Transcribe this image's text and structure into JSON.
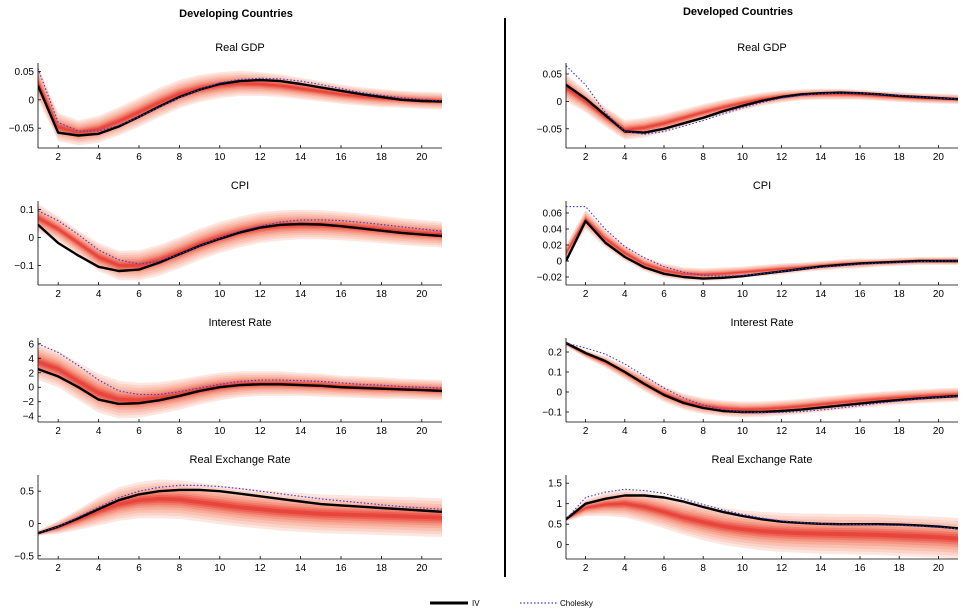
{
  "panel_titles": [
    "Developing Countries",
    "Developed Countries"
  ],
  "legend": {
    "iv": "IV",
    "cholesky": "Cholesky"
  },
  "colors": {
    "iv": "#000000",
    "cholesky": "#3b3bd6",
    "band_outer": "#fde6df",
    "band_mid": "#f7a38e",
    "band_inner": "#e8453c",
    "axes": "#000000",
    "divider": "#000000"
  },
  "chart_data": [
    {
      "type": "area",
      "panel": "Developing Countries",
      "title": "Real GDP",
      "xlim": [
        1,
        21
      ],
      "x_ticks": [
        2,
        4,
        6,
        8,
        10,
        12,
        14,
        16,
        18,
        20
      ],
      "ylim": [
        -0.085,
        0.065
      ],
      "y_ticks": [
        -0.05,
        0,
        0.05
      ],
      "y_tick_labels": [
        "−0.05",
        "0",
        "0.05"
      ],
      "x": [
        1,
        2,
        3,
        4,
        5,
        6,
        7,
        8,
        9,
        10,
        11,
        12,
        13,
        14,
        15,
        16,
        17,
        18,
        19,
        20,
        21
      ],
      "series": [
        {
          "name": "IV",
          "values": [
            0.025,
            -0.058,
            -0.063,
            -0.06,
            -0.047,
            -0.03,
            -0.012,
            0.005,
            0.018,
            0.028,
            0.033,
            0.035,
            0.033,
            0.028,
            0.022,
            0.016,
            0.01,
            0.005,
            0.0,
            -0.002,
            -0.003
          ]
        },
        {
          "name": "Cholesky",
          "values": [
            0.055,
            -0.04,
            -0.055,
            -0.055,
            -0.045,
            -0.03,
            -0.013,
            0.004,
            0.018,
            0.03,
            0.036,
            0.038,
            0.037,
            0.033,
            0.027,
            0.02,
            0.013,
            0.008,
            0.004,
            0.001,
            -0.002
          ]
        }
      ],
      "band_median": [
        0.03,
        -0.048,
        -0.058,
        -0.052,
        -0.038,
        -0.022,
        -0.005,
        0.01,
        0.02,
        0.026,
        0.029,
        0.028,
        0.025,
        0.02,
        0.015,
        0.01,
        0.006,
        0.003,
        0.001,
        -0.001,
        -0.002
      ],
      "band_halfwidth": [
        0.03,
        0.025,
        0.022,
        0.024,
        0.025,
        0.026,
        0.026,
        0.025,
        0.024,
        0.023,
        0.022,
        0.021,
        0.02,
        0.019,
        0.018,
        0.017,
        0.016,
        0.016,
        0.015,
        0.015,
        0.015
      ]
    },
    {
      "type": "area",
      "panel": "Developed Countries",
      "title": "Real GDP",
      "xlim": [
        1,
        21
      ],
      "x_ticks": [
        2,
        4,
        6,
        8,
        10,
        12,
        14,
        16,
        18,
        20
      ],
      "ylim": [
        -0.085,
        0.07
      ],
      "y_ticks": [
        -0.05,
        0,
        0.05
      ],
      "y_tick_labels": [
        "−0.05",
        "0",
        "0.05"
      ],
      "x": [
        1,
        2,
        3,
        4,
        5,
        6,
        7,
        8,
        9,
        10,
        11,
        12,
        13,
        14,
        15,
        16,
        17,
        18,
        19,
        20,
        21
      ],
      "series": [
        {
          "name": "IV",
          "values": [
            0.03,
            0.005,
            -0.025,
            -0.055,
            -0.057,
            -0.05,
            -0.04,
            -0.03,
            -0.018,
            -0.008,
            0.001,
            0.008,
            0.013,
            0.015,
            0.016,
            0.015,
            0.013,
            0.01,
            0.008,
            0.006,
            0.004
          ]
        },
        {
          "name": "Cholesky",
          "values": [
            0.065,
            0.03,
            -0.02,
            -0.055,
            -0.06,
            -0.055,
            -0.045,
            -0.035,
            -0.023,
            -0.012,
            -0.002,
            0.006,
            0.011,
            0.014,
            0.015,
            0.015,
            0.013,
            0.011,
            0.008,
            0.006,
            0.004
          ]
        }
      ],
      "band_median": [
        0.025,
        0.0,
        -0.028,
        -0.052,
        -0.048,
        -0.04,
        -0.03,
        -0.02,
        -0.011,
        -0.003,
        0.004,
        0.009,
        0.012,
        0.013,
        0.013,
        0.012,
        0.01,
        0.008,
        0.006,
        0.005,
        0.004
      ],
      "band_halfwidth": [
        0.025,
        0.02,
        0.018,
        0.018,
        0.018,
        0.017,
        0.016,
        0.015,
        0.014,
        0.013,
        0.012,
        0.011,
        0.01,
        0.01,
        0.01,
        0.009,
        0.009,
        0.009,
        0.009,
        0.009,
        0.009
      ]
    },
    {
      "type": "area",
      "panel": "Developing Countries",
      "title": "CPI",
      "xlim": [
        1,
        21
      ],
      "x_ticks": [
        2,
        4,
        6,
        8,
        10,
        12,
        14,
        16,
        18,
        20
      ],
      "ylim": [
        -0.17,
        0.13
      ],
      "y_ticks": [
        -0.1,
        0,
        0.1
      ],
      "y_tick_labels": [
        "−0.1",
        "0",
        "0.1"
      ],
      "x": [
        1,
        2,
        3,
        4,
        5,
        6,
        7,
        8,
        9,
        10,
        11,
        12,
        13,
        14,
        15,
        16,
        17,
        18,
        19,
        20,
        21
      ],
      "series": [
        {
          "name": "IV",
          "values": [
            0.045,
            -0.02,
            -0.065,
            -0.105,
            -0.12,
            -0.115,
            -0.09,
            -0.06,
            -0.03,
            -0.005,
            0.018,
            0.035,
            0.045,
            0.048,
            0.046,
            0.04,
            0.032,
            0.024,
            0.016,
            0.01,
            0.005
          ]
        },
        {
          "name": "Cholesky",
          "values": [
            0.095,
            0.06,
            0.01,
            -0.045,
            -0.08,
            -0.095,
            -0.085,
            -0.06,
            -0.03,
            -0.002,
            0.022,
            0.04,
            0.055,
            0.062,
            0.063,
            0.06,
            0.054,
            0.046,
            0.038,
            0.03,
            0.022
          ]
        }
      ],
      "band_median": [
        0.07,
        0.03,
        -0.02,
        -0.07,
        -0.1,
        -0.1,
        -0.082,
        -0.055,
        -0.025,
        0.0,
        0.02,
        0.035,
        0.043,
        0.046,
        0.045,
        0.041,
        0.035,
        0.028,
        0.021,
        0.015,
        0.01
      ],
      "band_halfwidth": [
        0.05,
        0.045,
        0.045,
        0.05,
        0.052,
        0.054,
        0.055,
        0.056,
        0.056,
        0.056,
        0.055,
        0.055,
        0.054,
        0.053,
        0.052,
        0.051,
        0.05,
        0.049,
        0.048,
        0.047,
        0.046
      ]
    },
    {
      "type": "area",
      "panel": "Developed Countries",
      "title": "CPI",
      "xlim": [
        1,
        21
      ],
      "x_ticks": [
        2,
        4,
        6,
        8,
        10,
        12,
        14,
        16,
        18,
        20
      ],
      "ylim": [
        -0.03,
        0.075
      ],
      "y_ticks": [
        -0.02,
        0,
        0.02,
        0.04,
        0.06
      ],
      "y_tick_labels": [
        "−0.02",
        "0",
        "0.02",
        "0.04",
        "0.06"
      ],
      "x": [
        1,
        2,
        3,
        4,
        5,
        6,
        7,
        8,
        9,
        10,
        11,
        12,
        13,
        14,
        15,
        16,
        17,
        18,
        19,
        20,
        21
      ],
      "series": [
        {
          "name": "IV",
          "values": [
            0.0,
            0.05,
            0.023,
            0.005,
            -0.008,
            -0.016,
            -0.02,
            -0.022,
            -0.021,
            -0.019,
            -0.016,
            -0.013,
            -0.01,
            -0.007,
            -0.005,
            -0.003,
            -0.002,
            -0.001,
            0.0,
            0.0,
            0.0
          ]
        },
        {
          "name": "Cholesky",
          "values": [
            0.068,
            0.068,
            0.04,
            0.018,
            0.004,
            -0.007,
            -0.014,
            -0.018,
            -0.019,
            -0.018,
            -0.016,
            -0.013,
            -0.01,
            -0.008,
            -0.006,
            -0.004,
            -0.003,
            -0.002,
            -0.001,
            0.0,
            0.0
          ]
        }
      ],
      "band_median": [
        0.01,
        0.052,
        0.028,
        0.01,
        -0.004,
        -0.012,
        -0.016,
        -0.017,
        -0.016,
        -0.014,
        -0.012,
        -0.01,
        -0.008,
        -0.006,
        -0.004,
        -0.003,
        -0.002,
        -0.001,
        0.0,
        0.0,
        0.0
      ],
      "band_halfwidth": [
        0.01,
        0.012,
        0.011,
        0.01,
        0.009,
        0.009,
        0.008,
        0.008,
        0.008,
        0.007,
        0.007,
        0.007,
        0.006,
        0.006,
        0.006,
        0.006,
        0.005,
        0.005,
        0.005,
        0.005,
        0.005
      ]
    },
    {
      "type": "area",
      "panel": "Developing Countries",
      "title": "Interest Rate",
      "xlim": [
        1,
        21
      ],
      "x_ticks": [
        2,
        4,
        6,
        8,
        10,
        12,
        14,
        16,
        18,
        20
      ],
      "ylim": [
        -4.8,
        6.8
      ],
      "y_ticks": [
        -4,
        -2,
        0,
        2,
        4,
        6
      ],
      "y_tick_labels": [
        "−4",
        "−2",
        "0",
        "2",
        "4",
        "6"
      ],
      "x": [
        1,
        2,
        3,
        4,
        5,
        6,
        7,
        8,
        9,
        10,
        11,
        12,
        13,
        14,
        15,
        16,
        17,
        18,
        19,
        20,
        21
      ],
      "series": [
        {
          "name": "IV",
          "values": [
            2.5,
            1.5,
            0.0,
            -1.7,
            -2.3,
            -2.2,
            -1.8,
            -1.2,
            -0.5,
            0.0,
            0.3,
            0.4,
            0.4,
            0.3,
            0.2,
            0.0,
            -0.1,
            -0.2,
            -0.3,
            -0.4,
            -0.5
          ]
        },
        {
          "name": "Cholesky",
          "values": [
            6.0,
            4.8,
            3.0,
            1.0,
            -0.5,
            -1.0,
            -1.0,
            -0.6,
            -0.1,
            0.4,
            0.8,
            1.0,
            1.0,
            0.9,
            0.8,
            0.6,
            0.4,
            0.3,
            0.1,
            0.0,
            -0.1
          ]
        }
      ],
      "band_median": [
        3.5,
        2.5,
        0.8,
        -0.8,
        -1.7,
        -1.8,
        -1.5,
        -1.0,
        -0.4,
        0.1,
        0.4,
        0.5,
        0.5,
        0.4,
        0.3,
        0.1,
        0.0,
        -0.1,
        -0.2,
        -0.3,
        -0.4
      ],
      "band_halfwidth": [
        2.5,
        2.5,
        2.6,
        2.7,
        2.6,
        2.4,
        2.2,
        2.1,
        2.0,
        1.9,
        1.8,
        1.7,
        1.7,
        1.6,
        1.6,
        1.5,
        1.5,
        1.5,
        1.4,
        1.4,
        1.4
      ]
    },
    {
      "type": "area",
      "panel": "Developed Countries",
      "title": "Interest Rate",
      "xlim": [
        1,
        21
      ],
      "x_ticks": [
        2,
        4,
        6,
        8,
        10,
        12,
        14,
        16,
        18,
        20
      ],
      "ylim": [
        -0.15,
        0.27
      ],
      "y_ticks": [
        -0.1,
        0,
        0.1,
        0.2
      ],
      "y_tick_labels": [
        "−0.1",
        "0",
        "0.1",
        "0.2"
      ],
      "x": [
        1,
        2,
        3,
        4,
        5,
        6,
        7,
        8,
        9,
        10,
        11,
        12,
        13,
        14,
        15,
        16,
        17,
        18,
        19,
        20,
        21
      ],
      "series": [
        {
          "name": "IV",
          "values": [
            0.245,
            0.195,
            0.155,
            0.1,
            0.04,
            -0.015,
            -0.055,
            -0.08,
            -0.095,
            -0.1,
            -0.1,
            -0.095,
            -0.088,
            -0.078,
            -0.068,
            -0.058,
            -0.048,
            -0.04,
            -0.032,
            -0.026,
            -0.02
          ]
        },
        {
          "name": "Cholesky",
          "values": [
            0.245,
            0.22,
            0.19,
            0.14,
            0.08,
            0.02,
            -0.03,
            -0.065,
            -0.088,
            -0.1,
            -0.103,
            -0.102,
            -0.098,
            -0.09,
            -0.08,
            -0.068,
            -0.056,
            -0.045,
            -0.035,
            -0.027,
            -0.02
          ]
        }
      ],
      "band_median": [
        0.24,
        0.19,
        0.15,
        0.098,
        0.042,
        -0.01,
        -0.048,
        -0.07,
        -0.082,
        -0.088,
        -0.086,
        -0.08,
        -0.072,
        -0.062,
        -0.052,
        -0.043,
        -0.035,
        -0.028,
        -0.022,
        -0.017,
        -0.013
      ],
      "band_halfwidth": [
        0.01,
        0.02,
        0.028,
        0.034,
        0.038,
        0.04,
        0.04,
        0.04,
        0.04,
        0.04,
        0.039,
        0.039,
        0.038,
        0.038,
        0.037,
        0.037,
        0.036,
        0.036,
        0.035,
        0.035,
        0.035
      ]
    },
    {
      "type": "area",
      "panel": "Developing Countries",
      "title": "Real Exchange Rate",
      "xlim": [
        1,
        21
      ],
      "x_ticks": [
        2,
        4,
        6,
        8,
        10,
        12,
        14,
        16,
        18,
        20
      ],
      "ylim": [
        -0.55,
        0.75
      ],
      "y_ticks": [
        -0.5,
        0,
        0.5
      ],
      "y_tick_labels": [
        "−0.5",
        "0",
        "0.5"
      ],
      "x": [
        1,
        2,
        3,
        4,
        5,
        6,
        7,
        8,
        9,
        10,
        11,
        12,
        13,
        14,
        15,
        16,
        17,
        18,
        19,
        20,
        21
      ],
      "series": [
        {
          "name": "IV",
          "values": [
            -0.15,
            -0.05,
            0.08,
            0.22,
            0.36,
            0.45,
            0.5,
            0.52,
            0.52,
            0.5,
            0.46,
            0.42,
            0.38,
            0.34,
            0.3,
            0.28,
            0.26,
            0.24,
            0.22,
            0.2,
            0.18
          ]
        },
        {
          "name": "Cholesky",
          "values": [
            -0.15,
            -0.05,
            0.1,
            0.25,
            0.4,
            0.5,
            0.56,
            0.59,
            0.59,
            0.57,
            0.54,
            0.5,
            0.46,
            0.42,
            0.38,
            0.35,
            0.32,
            0.29,
            0.26,
            0.24,
            0.22
          ]
        }
      ],
      "band_median": [
        -0.15,
        -0.06,
        0.06,
        0.19,
        0.3,
        0.36,
        0.38,
        0.37,
        0.33,
        0.29,
        0.25,
        0.22,
        0.19,
        0.17,
        0.15,
        0.14,
        0.13,
        0.12,
        0.11,
        0.1,
        0.09
      ],
      "band_halfwidth": [
        0.04,
        0.1,
        0.16,
        0.22,
        0.26,
        0.28,
        0.3,
        0.3,
        0.3,
        0.3,
        0.3,
        0.3,
        0.3,
        0.3,
        0.3,
        0.3,
        0.3,
        0.3,
        0.3,
        0.3,
        0.3
      ]
    },
    {
      "type": "area",
      "panel": "Developed Countries",
      "title": "Real Exchange Rate",
      "xlim": [
        1,
        21
      ],
      "x_ticks": [
        2,
        4,
        6,
        8,
        10,
        12,
        14,
        16,
        18,
        20
      ],
      "ylim": [
        -0.35,
        1.7
      ],
      "y_ticks": [
        0,
        0.5,
        1,
        1.5
      ],
      "y_tick_labels": [
        "0",
        "0.5",
        "1",
        "1.5"
      ],
      "x": [
        1,
        2,
        3,
        4,
        5,
        6,
        7,
        8,
        9,
        10,
        11,
        12,
        13,
        14,
        15,
        16,
        17,
        18,
        19,
        20,
        21
      ],
      "series": [
        {
          "name": "IV",
          "values": [
            0.62,
            1.0,
            1.12,
            1.2,
            1.2,
            1.15,
            1.05,
            0.92,
            0.8,
            0.7,
            0.62,
            0.56,
            0.53,
            0.51,
            0.5,
            0.5,
            0.5,
            0.49,
            0.47,
            0.44,
            0.4
          ]
        },
        {
          "name": "Cholesky",
          "values": [
            0.62,
            1.15,
            1.28,
            1.35,
            1.32,
            1.25,
            1.12,
            0.98,
            0.85,
            0.74,
            0.65,
            0.58,
            0.54,
            0.51,
            0.5,
            0.49,
            0.48,
            0.47,
            0.45,
            0.42,
            0.39
          ]
        }
      ],
      "band_median": [
        0.62,
        0.9,
        0.98,
        1.0,
        0.92,
        0.8,
        0.66,
        0.55,
        0.45,
        0.38,
        0.33,
        0.3,
        0.28,
        0.27,
        0.26,
        0.25,
        0.24,
        0.22,
        0.2,
        0.18,
        0.15
      ],
      "band_halfwidth": [
        0.05,
        0.2,
        0.28,
        0.34,
        0.38,
        0.4,
        0.42,
        0.44,
        0.45,
        0.46,
        0.47,
        0.48,
        0.48,
        0.49,
        0.49,
        0.5,
        0.5,
        0.5,
        0.5,
        0.5,
        0.5
      ]
    }
  ]
}
